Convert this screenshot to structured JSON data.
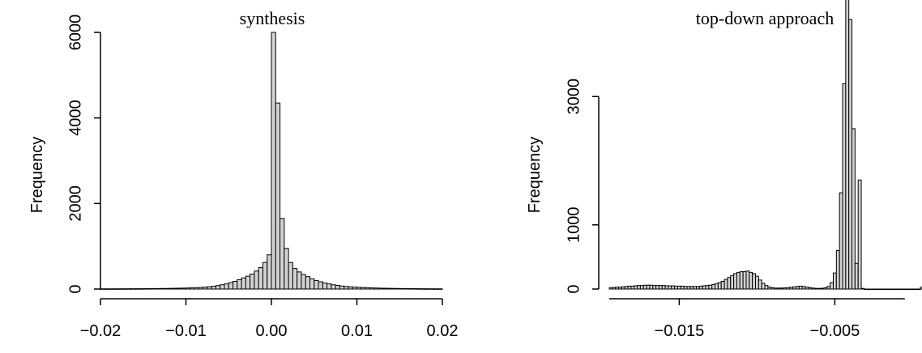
{
  "chart_data": [
    {
      "type": "bar",
      "subtype": "histogram",
      "title": "synthesis",
      "xlabel": "",
      "ylabel": "Frequency",
      "xlim": [
        -0.02,
        0.02
      ],
      "ylim": [
        0,
        6000
      ],
      "xticks": [
        -0.02,
        -0.01,
        0.0,
        0.01,
        0.02
      ],
      "xtick_labels": [
        "−0.02",
        "−0.01",
        "0.00",
        "0.01",
        "0.02"
      ],
      "yticks": [
        0,
        2000,
        4000,
        6000
      ],
      "ytick_labels": [
        "0",
        "2000",
        "4000",
        "6000"
      ],
      "bin_width": 0.0005,
      "bins_start": -0.02,
      "counts": [
        5,
        5,
        5,
        5,
        6,
        6,
        7,
        7,
        8,
        8,
        9,
        10,
        11,
        12,
        13,
        14,
        16,
        18,
        20,
        22,
        25,
        28,
        32,
        37,
        45,
        55,
        65,
        80,
        100,
        120,
        150,
        180,
        220,
        260,
        300,
        350,
        420,
        500,
        620,
        800,
        6000,
        4350,
        1650,
        950,
        620,
        480,
        400,
        340,
        290,
        240,
        200,
        170,
        140,
        120,
        100,
        85,
        70,
        60,
        52,
        45,
        40,
        35,
        30,
        27,
        24,
        21,
        19,
        17,
        15,
        13,
        12,
        11,
        10,
        9,
        8,
        7,
        6,
        6,
        5,
        5
      ],
      "grid": false,
      "bar_fill": "#d3d3d3",
      "bar_stroke": "#000000"
    },
    {
      "type": "bar",
      "subtype": "histogram",
      "title": "top-down approach",
      "xlabel": "",
      "ylabel": "Frequency",
      "xlim": [
        -0.0195,
        0.0005
      ],
      "ylim": [
        0,
        4000
      ],
      "xticks": [
        -0.015,
        -0.005
      ],
      "xtick_labels": [
        "−0.015",
        "−0.005"
      ],
      "yticks": [
        0,
        1000,
        3000
      ],
      "ytick_labels": [
        "0",
        "1000",
        "3000"
      ],
      "axis_span": [
        -0.0195,
        -0.0005
      ],
      "bin_width": 0.0002,
      "bins_start": -0.0195,
      "counts": [
        20,
        25,
        30,
        30,
        35,
        40,
        45,
        45,
        50,
        55,
        55,
        60,
        60,
        60,
        55,
        55,
        55,
        55,
        50,
        50,
        50,
        45,
        45,
        45,
        40,
        40,
        40,
        40,
        40,
        45,
        50,
        55,
        60,
        70,
        85,
        100,
        120,
        150,
        180,
        210,
        240,
        260,
        270,
        270,
        280,
        260,
        240,
        200,
        140,
        90,
        55,
        30,
        20,
        15,
        15,
        15,
        18,
        22,
        28,
        35,
        40,
        45,
        40,
        30,
        22,
        15,
        10,
        10,
        12,
        20,
        40,
        100,
        250,
        600,
        1500,
        3200,
        4700,
        4200,
        2500,
        400,
        1700,
        10,
        0,
        0,
        0,
        0,
        0,
        0,
        0,
        0,
        0,
        0,
        0,
        0,
        0,
        0,
        0,
        0,
        0,
        0,
        30,
        60,
        70,
        60,
        25
      ],
      "grid": false,
      "bar_fill": "#d3d3d3",
      "bar_stroke": "#000000"
    }
  ]
}
